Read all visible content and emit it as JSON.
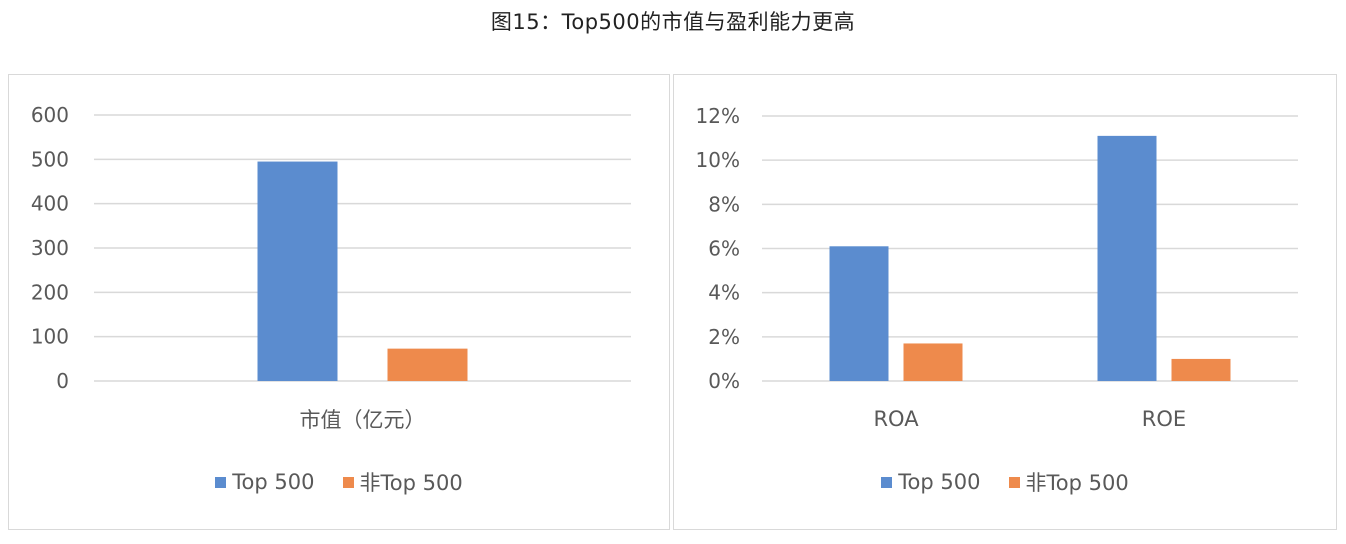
{
  "page": {
    "title": "图15：Top500的市值与盈利能力更高"
  },
  "colors": {
    "top500": "#5b8ccf",
    "non_top500": "#ee8a4c",
    "grid": "#d9d9d9",
    "axis_text": "#595959"
  },
  "legend": {
    "series_a": "Top 500",
    "series_b": "非Top 500"
  },
  "chart_data": [
    {
      "type": "bar",
      "categories": [
        "市值（亿元）"
      ],
      "series": [
        {
          "name": "Top 500",
          "values": [
            495
          ]
        },
        {
          "name": "非Top 500",
          "values": [
            73
          ]
        }
      ],
      "ylim": [
        0,
        600
      ],
      "yticks": [
        0,
        100,
        200,
        300,
        400,
        500,
        600
      ],
      "ytick_labels": [
        "0",
        "100",
        "200",
        "300",
        "400",
        "500",
        "600"
      ],
      "grid": true,
      "legend_position": "bottom"
    },
    {
      "type": "bar",
      "categories": [
        "ROA",
        "ROE"
      ],
      "series": [
        {
          "name": "Top 500",
          "values": [
            6.1,
            11.1
          ]
        },
        {
          "name": "非Top 500",
          "values": [
            1.7,
            1.0
          ]
        }
      ],
      "ylim": [
        0,
        12
      ],
      "yticks": [
        0,
        2,
        4,
        6,
        8,
        10,
        12
      ],
      "ytick_labels": [
        "0%",
        "2%",
        "4%",
        "6%",
        "8%",
        "10%",
        "12%"
      ],
      "grid": true,
      "legend_position": "bottom"
    }
  ]
}
